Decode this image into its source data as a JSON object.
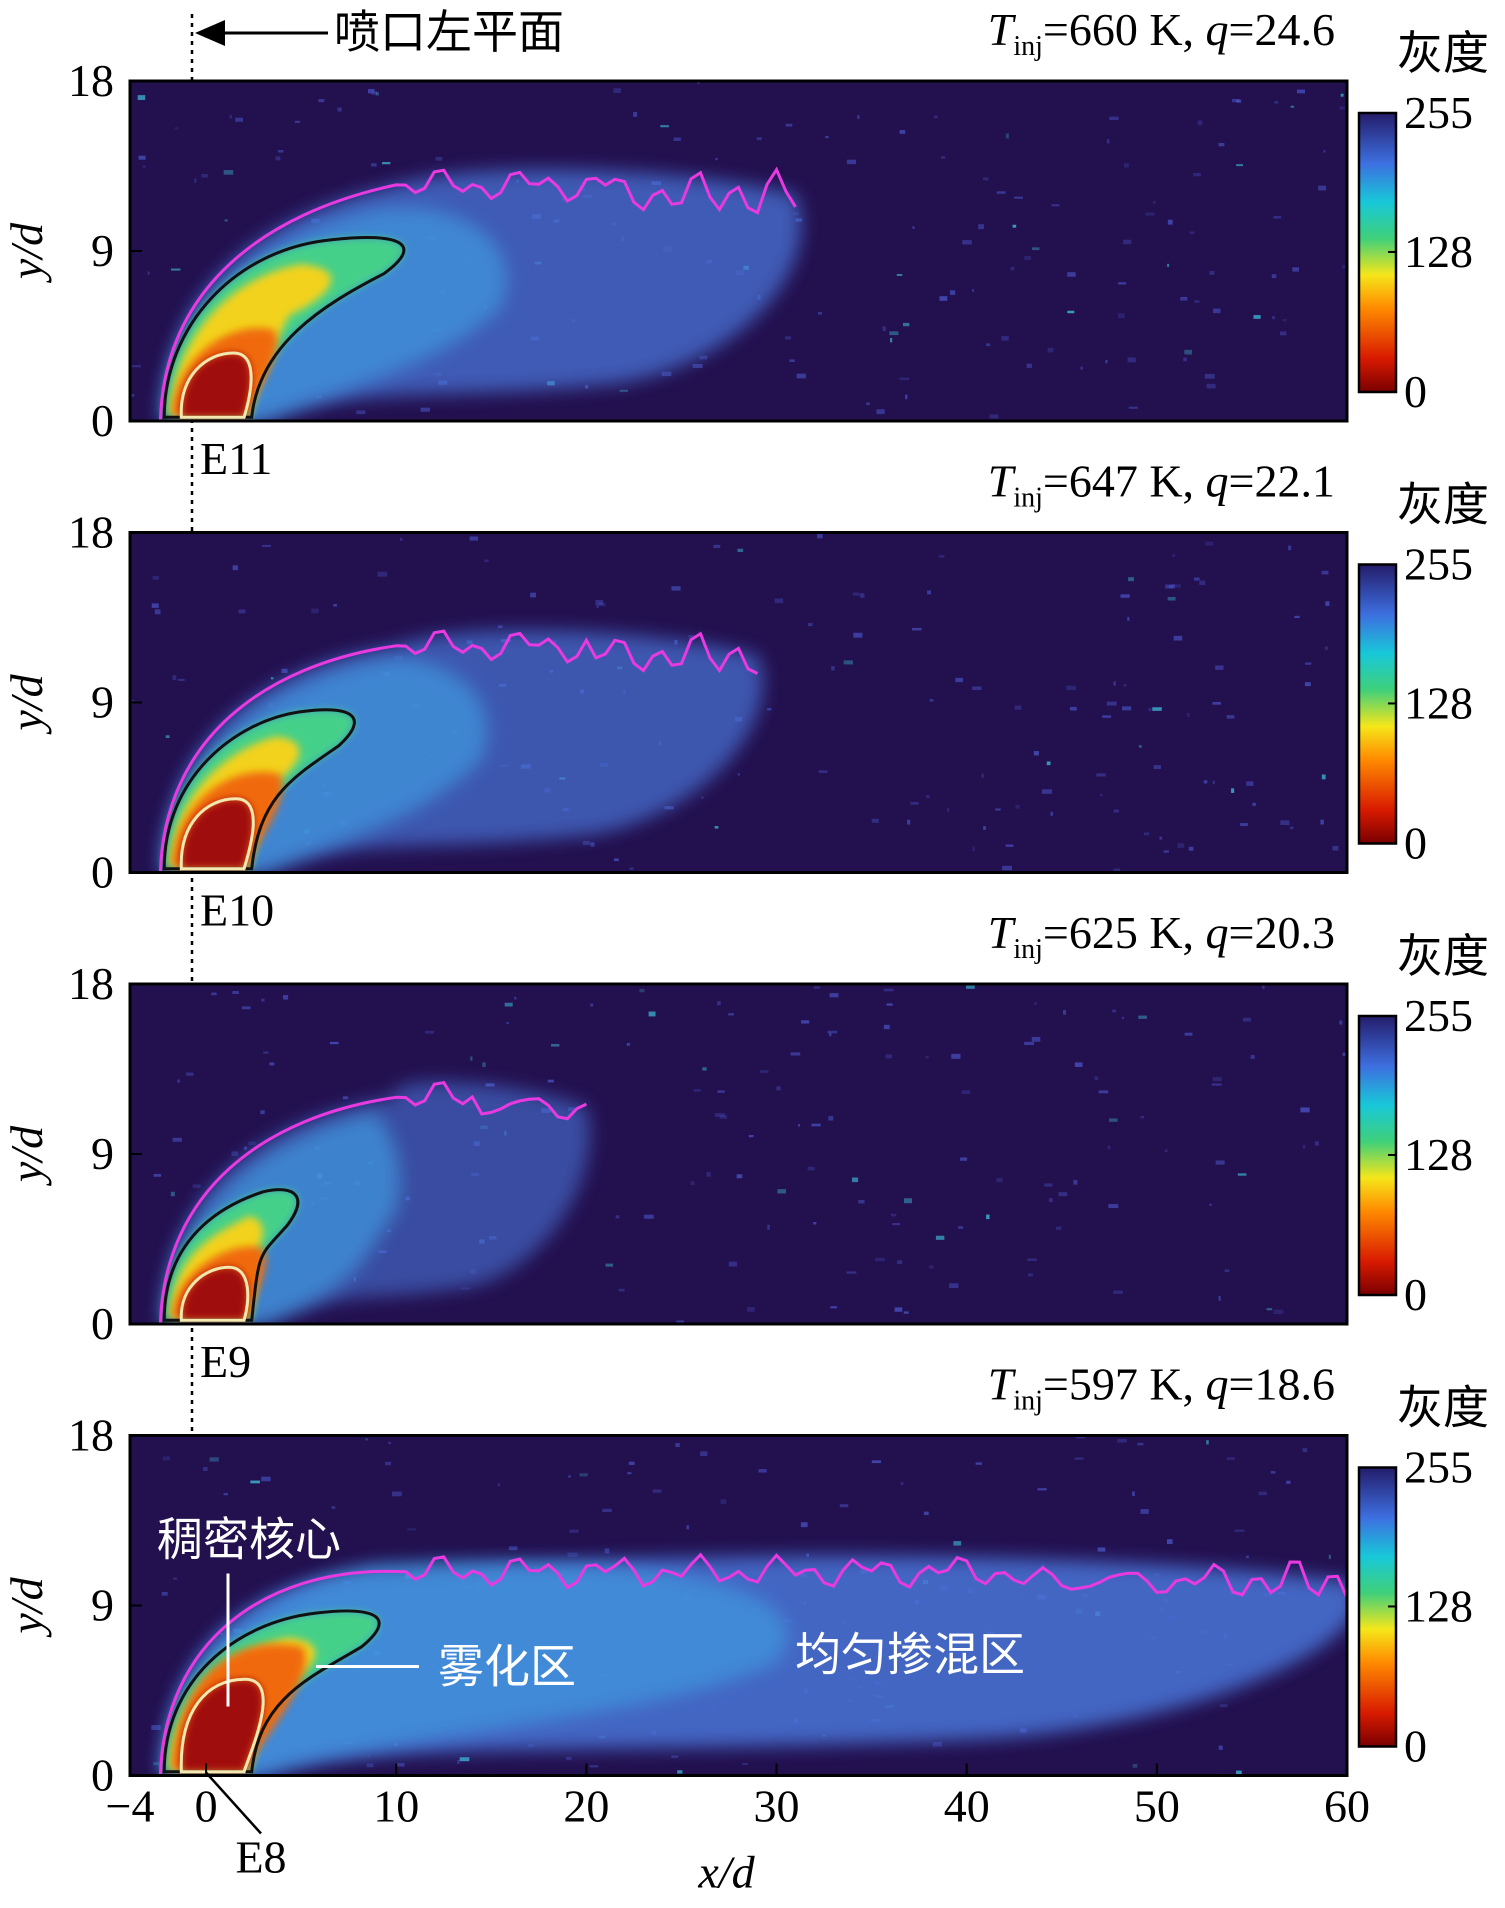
{
  "annotation_top": "喷口左平面",
  "chart_data": [
    {
      "type": "heatmap",
      "title": {
        "symbol": "T",
        "subscript": "inj",
        "text": "=660 K, ",
        "symbol2": "q",
        "text2": "=24.6"
      },
      "case": "E11",
      "ylabel": "y/d",
      "xlim": [
        -4,
        60
      ],
      "ylim": [
        0,
        18
      ],
      "yticks": [
        0,
        9,
        18
      ],
      "colorbar": {
        "label": "灰度",
        "lim": [
          0,
          255
        ],
        "ticks": [
          0,
          128,
          255
        ]
      }
    },
    {
      "type": "heatmap",
      "title": {
        "symbol": "T",
        "subscript": "inj",
        "text": "=647 K, ",
        "symbol2": "q",
        "text2": "=22.1"
      },
      "case": "E10",
      "ylabel": "y/d",
      "xlim": [
        -4,
        60
      ],
      "ylim": [
        0,
        18
      ],
      "yticks": [
        0,
        9,
        18
      ],
      "colorbar": {
        "label": "灰度",
        "lim": [
          0,
          255
        ],
        "ticks": [
          0,
          128,
          255
        ]
      }
    },
    {
      "type": "heatmap",
      "title": {
        "symbol": "T",
        "subscript": "inj",
        "text": "=625 K, ",
        "symbol2": "q",
        "text2": "=20.3"
      },
      "case": "E9",
      "ylabel": "y/d",
      "xlim": [
        -4,
        60
      ],
      "ylim": [
        0,
        18
      ],
      "yticks": [
        0,
        9,
        18
      ],
      "colorbar": {
        "label": "灰度",
        "lim": [
          0,
          255
        ],
        "ticks": [
          0,
          128,
          255
        ]
      }
    },
    {
      "type": "heatmap",
      "title": {
        "symbol": "T",
        "subscript": "inj",
        "text": "=597 K, ",
        "symbol2": "q",
        "text2": "=18.6"
      },
      "case": "E8",
      "ylabel": "y/d",
      "xlabel": "x/d",
      "xlim": [
        -4,
        60
      ],
      "ylim": [
        0,
        18
      ],
      "yticks": [
        0,
        9,
        18
      ],
      "xticks": [
        {
          "value": -4,
          "label": "−4"
        },
        0,
        10,
        20,
        30,
        40,
        50,
        60
      ],
      "colorbar": {
        "label": "灰度",
        "lim": [
          0,
          255
        ],
        "ticks": [
          0,
          128,
          255
        ]
      },
      "annotations": [
        "稠密核心",
        "雾化区",
        "均匀掺混区"
      ]
    }
  ]
}
